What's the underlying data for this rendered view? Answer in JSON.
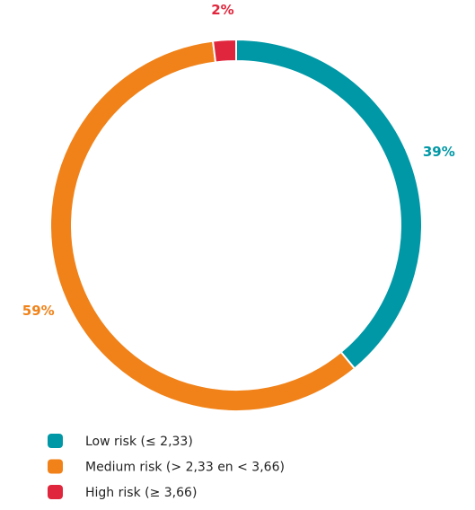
{
  "chart_data": {
    "type": "donut",
    "categories": [
      "Low risk (≤ 2,33)",
      "Medium risk (> 2,33 en < 3,66)",
      "High risk (≥ 3,66)"
    ],
    "values": [
      39,
      59,
      2
    ],
    "value_labels": [
      "39%",
      "59%",
      "2%"
    ],
    "colors": [
      "#0098a6",
      "#f08219",
      "#e0263c"
    ],
    "legend": "bottom"
  }
}
